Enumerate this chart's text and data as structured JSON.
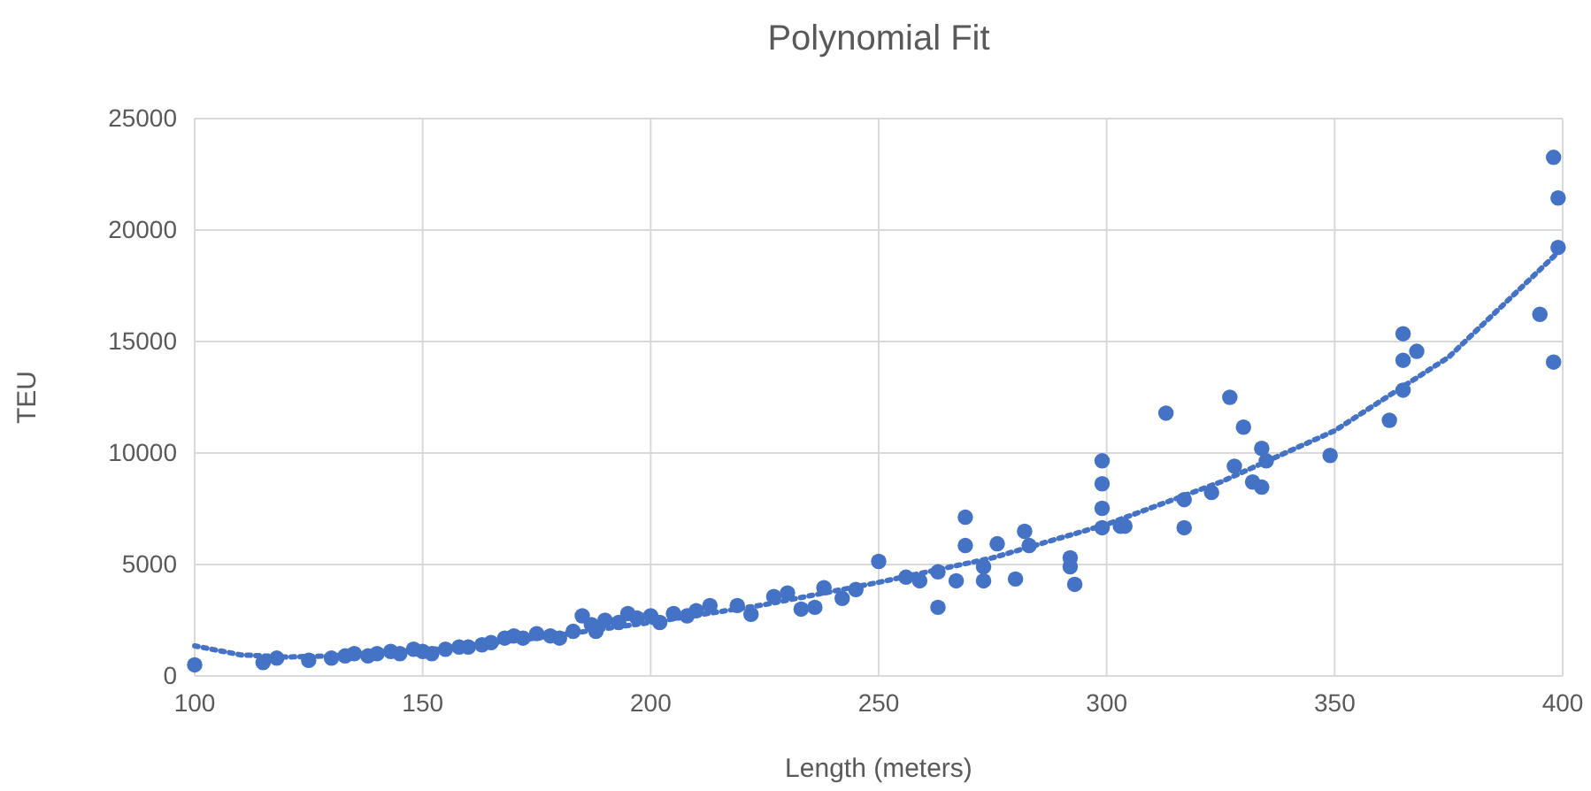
{
  "chart_data": {
    "type": "scatter",
    "title": "Polynomial Fit",
    "xlabel": "Length (meters)",
    "ylabel": "TEU",
    "xlim": [
      100,
      400
    ],
    "xticks": [
      100,
      150,
      200,
      250,
      300,
      350,
      400
    ],
    "ylim": [
      0,
      25000
    ],
    "yticks": [
      0,
      5000,
      10000,
      15000,
      20000,
      25000
    ],
    "grid": true,
    "marker": "circle",
    "series": [
      {
        "color": "#4472c4",
        "x": [
          100,
          115,
          118,
          125,
          130,
          133,
          135,
          138,
          140,
          143,
          145,
          148,
          150,
          152,
          155,
          158,
          160,
          163,
          165,
          168,
          170,
          172,
          175,
          178,
          180,
          183,
          185,
          187,
          188,
          190,
          193,
          195,
          197,
          200,
          202,
          205,
          208,
          210,
          213,
          219,
          222,
          227,
          230,
          233,
          236,
          238,
          242,
          245,
          250,
          256,
          259,
          263,
          263,
          267,
          269,
          269,
          273,
          273,
          276,
          280,
          282,
          283,
          292,
          293,
          292,
          299,
          299,
          299,
          299,
          304,
          303,
          313,
          317,
          317,
          323,
          327,
          328,
          330,
          332,
          334,
          334,
          335,
          349,
          362,
          365,
          365,
          365,
          368,
          395,
          398,
          398,
          399,
          399
        ],
        "values": [
          500,
          600,
          800,
          700,
          800,
          900,
          1000,
          900,
          1000,
          1100,
          1000,
          1200,
          1100,
          1000,
          1200,
          1300,
          1300,
          1400,
          1500,
          1700,
          1800,
          1700,
          1900,
          1800,
          1700,
          2000,
          2700,
          2300,
          2000,
          2500,
          2400,
          2800,
          2600,
          2700,
          2400,
          2800,
          2700,
          2930,
          3160,
          3160,
          2770,
          3560,
          3720,
          3000,
          3080,
          3960,
          3480,
          3880,
          5140,
          4430,
          4270,
          3080,
          4670,
          4270,
          7120,
          5850,
          4900,
          4270,
          5930,
          4350,
          6490,
          5850,
          5300,
          4110,
          4900,
          9650,
          8620,
          7520,
          6650,
          6720,
          6720,
          11790,
          7910,
          6650,
          8230,
          12500,
          9410,
          11160,
          8700,
          8470,
          10210,
          9650,
          9890,
          11470,
          15350,
          14160,
          12820,
          14560,
          16220,
          14080,
          23260,
          21440,
          19220
        ]
      },
      {
        "type": "line",
        "color": "#4472c4",
        "line_style": "dotted",
        "marker": "none",
        "x": [
          100,
          110,
          120,
          130,
          150,
          175,
          200,
          225,
          250,
          275,
          300,
          325,
          350,
          375,
          400
        ],
        "values": [
          1350,
          950,
          850,
          900,
          1150,
          1700,
          2400,
          3200,
          4200,
          5300,
          6800,
          8700,
          11000,
          14300,
          19200
        ]
      }
    ]
  }
}
